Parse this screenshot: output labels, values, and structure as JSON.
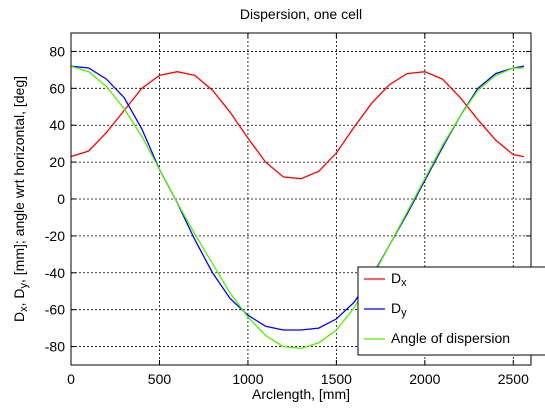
{
  "chart_data": {
    "type": "line",
    "title": "Dispersion, one cell",
    "xlabel": "Arclength, [mm]",
    "ylabel_parts": [
      {
        "text": "D",
        "sub": false
      },
      {
        "text": "x",
        "sub": true
      },
      {
        "text": ", D",
        "sub": false
      },
      {
        "text": "y",
        "sub": true
      },
      {
        "text": ", [mm]; angle wrt horizontal, [deg]",
        "sub": false
      }
    ],
    "xlim": [
      0,
      2600
    ],
    "ylim": [
      -90,
      90
    ],
    "xticks": [
      0,
      500,
      1000,
      1500,
      2000,
      2500
    ],
    "yticks": [
      80,
      60,
      40,
      20,
      0,
      -20,
      -40,
      -60,
      -80
    ],
    "grid": true,
    "legend_position": "bottom-right",
    "series": [
      {
        "id": "dx",
        "legend_main": "D",
        "legend_sub": "x",
        "color": "#ff0000",
        "x": [
          0,
          100,
          200,
          300,
          400,
          500,
          600,
          700,
          800,
          900,
          1000,
          1100,
          1200,
          1300,
          1400,
          1500,
          1600,
          1700,
          1800,
          1900,
          2000,
          2100,
          2200,
          2300,
          2400,
          2500,
          2560
        ],
        "y": [
          23,
          26,
          36,
          48,
          60,
          67,
          69,
          67,
          59,
          47,
          33,
          20,
          12,
          11,
          15,
          25,
          39,
          52,
          62,
          68,
          69,
          65,
          55,
          43,
          32,
          24,
          23
        ]
      },
      {
        "id": "dy",
        "legend_main": "D",
        "legend_sub": "y",
        "color": "#0000ff",
        "x": [
          0,
          100,
          200,
          300,
          400,
          500,
          600,
          700,
          800,
          900,
          1000,
          1100,
          1200,
          1300,
          1400,
          1500,
          1600,
          1700,
          1800,
          1900,
          2000,
          2100,
          2200,
          2300,
          2400,
          2500,
          2560
        ],
        "y": [
          72,
          71,
          65,
          55,
          38,
          16,
          -2,
          -22,
          -40,
          -54,
          -63,
          -69,
          -71,
          -71,
          -70,
          -65,
          -56,
          -42,
          -25,
          -8,
          10,
          28,
          45,
          60,
          68,
          71,
          72
        ]
      },
      {
        "id": "angle",
        "legend_main": "Angle of dispersion",
        "legend_sub": "",
        "color": "#55ee00",
        "x": [
          0,
          100,
          200,
          300,
          400,
          500,
          600,
          700,
          800,
          900,
          1000,
          1100,
          1200,
          1300,
          1400,
          1500,
          1600,
          1700,
          1800,
          1900,
          2000,
          2100,
          2200,
          2300,
          2400,
          2500,
          2560
        ],
        "y": [
          72,
          69,
          61,
          49,
          34,
          16,
          -2,
          -19,
          -35,
          -51,
          -64,
          -74,
          -80,
          -81,
          -78,
          -71,
          -59,
          -43,
          -25,
          -7,
          11,
          29,
          45,
          59,
          67,
          71,
          71
        ]
      }
    ]
  }
}
